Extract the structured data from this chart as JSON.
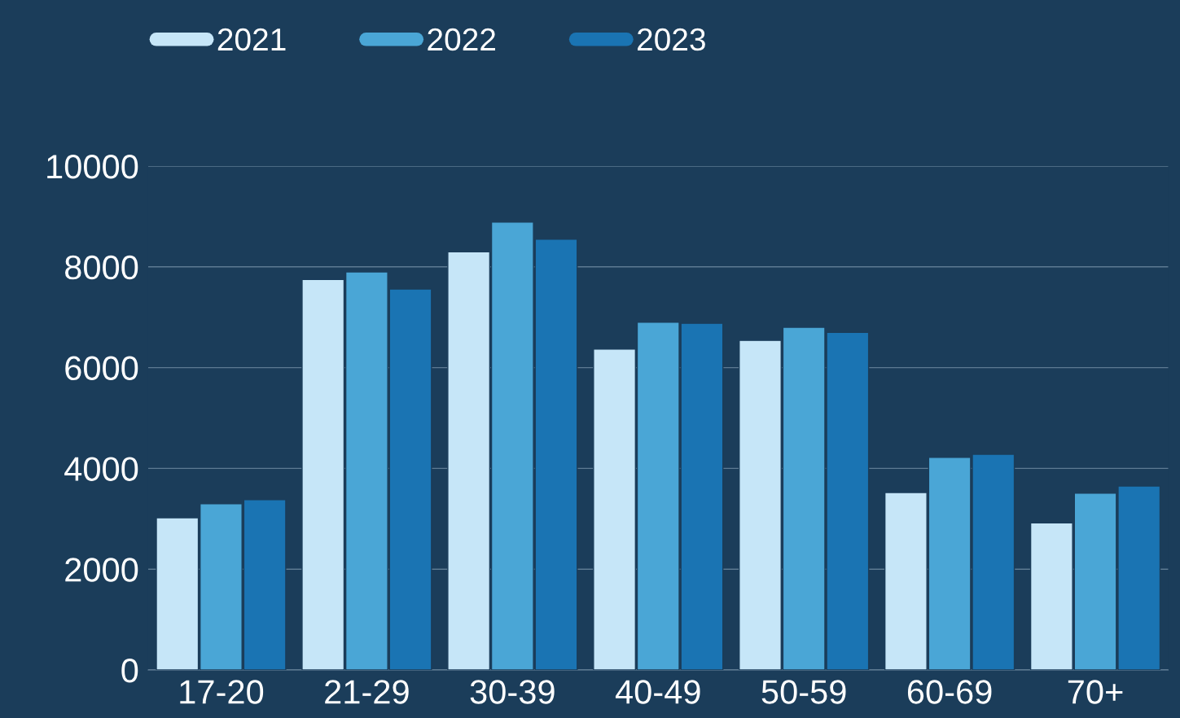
{
  "chart_data": {
    "type": "bar",
    "categories": [
      "17-20",
      "21-29",
      "30-39",
      "40-49",
      "50-59",
      "60-69",
      "70+"
    ],
    "series": [
      {
        "name": "2021",
        "color": "#c6e6f8",
        "values": [
          3020,
          7750,
          8300,
          6370,
          6540,
          3520,
          2920
        ]
      },
      {
        "name": "2022",
        "color": "#4aa6d6",
        "values": [
          3300,
          7900,
          8890,
          6900,
          6800,
          4220,
          3510
        ]
      },
      {
        "name": "2023",
        "color": "#1a74b3",
        "values": [
          3380,
          7560,
          8550,
          6880,
          6700,
          4280,
          3650
        ]
      }
    ],
    "ylim": [
      0,
      10000
    ],
    "yticks": [
      0,
      2000,
      4000,
      6000,
      8000,
      10000
    ],
    "grid": "y",
    "legend": "top left"
  }
}
